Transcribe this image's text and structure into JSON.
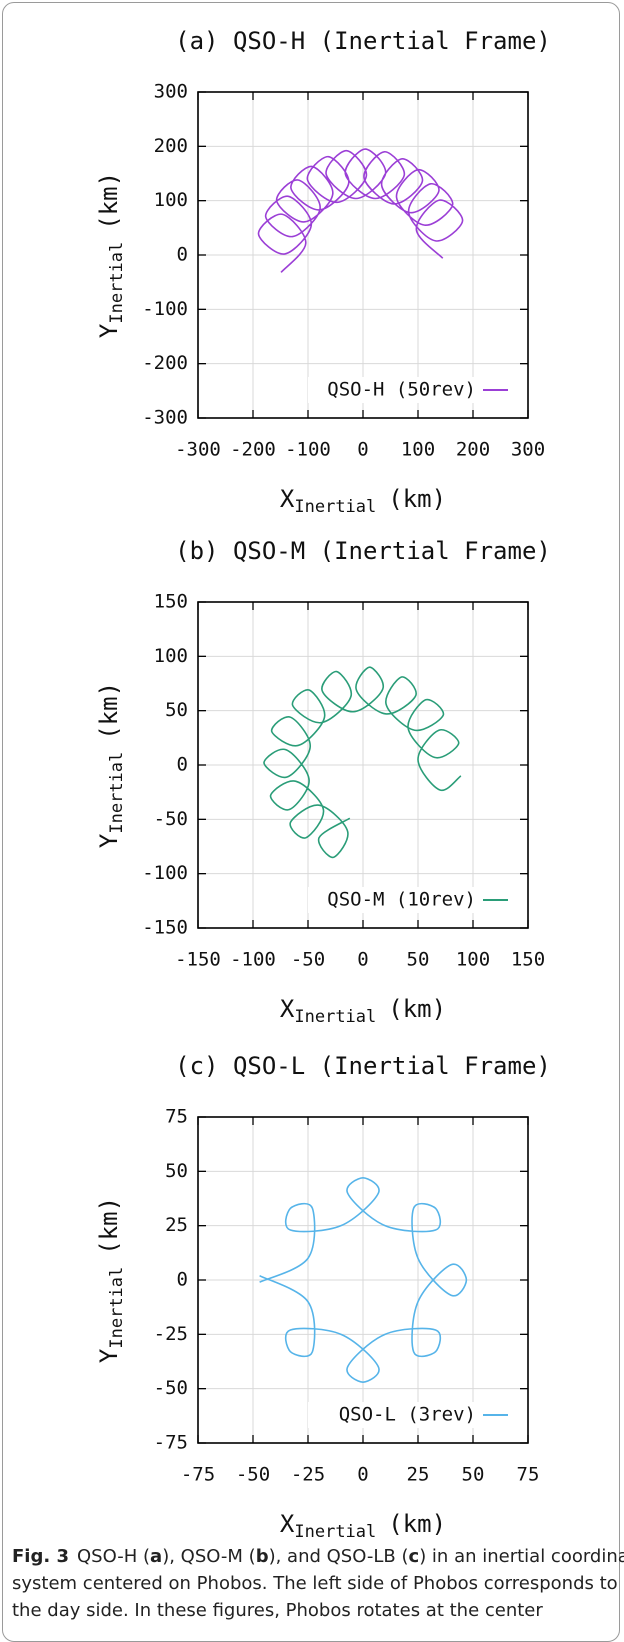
{
  "chart_data": [
    {
      "type": "line",
      "title": "(a) QSO-H (Inertial Frame)",
      "xlabel": {
        "main": "X",
        "sub": "Inertial",
        "unit": "(km)"
      },
      "ylabel": {
        "main": "Y",
        "sub": "Inertial",
        "unit": "(km)"
      },
      "x": [
        -149,
        -104,
        -147,
        -190,
        -142,
        -94,
        -136,
        -177,
        -128,
        -78,
        -118,
        -157,
        -106,
        -55,
        -93,
        -131,
        -79,
        -26,
        -63,
        -101,
        -47,
        6,
        -30,
        -67,
        -13,
        41,
        4,
        -32,
        22,
        75,
        39,
        2,
        56,
        108,
        71,
        34,
        86,
        138,
        100,
        61,
        112,
        163,
        123,
        83,
        132,
        181,
        139,
        97,
        145
      ],
      "series": [
        {
          "name": "QSO-H (50rev)",
          "color": "#9b3fd6",
          "values": [
            -32,
            22,
            75,
            39,
            2,
            56,
            108,
            71,
            34,
            86,
            138,
            100,
            61,
            112,
            163,
            123,
            83,
            132,
            181,
            139,
            97,
            145,
            192,
            149,
            104,
            150,
            195,
            149,
            104,
            147,
            190,
            142,
            94,
            136,
            177,
            128,
            78,
            118,
            157,
            106,
            55,
            93,
            131,
            79,
            26,
            63,
            101,
            47,
            -6
          ]
        }
      ],
      "xlim": [
        -300,
        300
      ],
      "xticks": [
        -300,
        -200,
        -100,
        0,
        100,
        200,
        300
      ],
      "ylim": [
        -300,
        300
      ],
      "yticks": [
        -300,
        -200,
        -100,
        0,
        100,
        200,
        300
      ],
      "grid": true,
      "legend": "lower right"
    },
    {
      "type": "line",
      "title": "(b) QSO-M (Inertial Frame)",
      "xlabel": {
        "main": "X",
        "sub": "Inertial",
        "unit": "(km)"
      },
      "ylabel": {
        "main": "Y",
        "sub": "Inertial",
        "unit": "(km)"
      },
      "x": [
        -12,
        -40,
        -27,
        -14,
        -40,
        -66,
        -52,
        -36,
        -61,
        -84,
        -67,
        -49,
        -70,
        -90,
        -69,
        -48,
        -66,
        -83,
        -59,
        -35,
        -49,
        -64,
        -38,
        -11,
        -24,
        -37,
        -9,
        18,
        6,
        -6,
        21,
        48,
        35,
        21,
        47,
        73,
        57,
        41,
        65,
        87,
        69,
        50,
        70,
        89
      ],
      "series": [
        {
          "name": "QSO-M (10rev)",
          "color": "#2a9d78",
          "values": [
            -49,
            -67,
            -85,
            -61,
            -37,
            -53,
            -67,
            -41,
            -15,
            -28,
            -41,
            -14,
            14,
            2,
            -11,
            17,
            44,
            31,
            18,
            44,
            69,
            55,
            39,
            63,
            86,
            68,
            49,
            70,
            90,
            69,
            47,
            64,
            81,
            56,
            32,
            46,
            60,
            34,
            7,
            20,
            32,
            5,
            -23,
            -10
          ]
        }
      ],
      "xlim": [
        -150,
        150
      ],
      "xticks": [
        -150,
        -100,
        -50,
        0,
        50,
        100,
        150
      ],
      "ylim": [
        -150,
        150
      ],
      "yticks": [
        -150,
        -100,
        -50,
        0,
        50,
        100,
        150
      ],
      "grid": true,
      "legend": "lower right"
    },
    {
      "type": "line",
      "title": "(c) QSO-L (Inertial Frame)",
      "xlabel": {
        "main": "X",
        "sub": "Inertial",
        "unit": "(km)"
      },
      "ylabel": {
        "main": "Y",
        "sub": "Inertial",
        "unit": "(km)"
      },
      "x": [
        -47,
        -25,
        -23,
        -33,
        -33,
        -10,
        7,
        0,
        -7,
        10,
        33,
        33,
        23,
        25,
        40,
        47,
        40,
        25,
        23,
        33,
        33,
        10,
        -7,
        0,
        7,
        -10,
        -33,
        -33,
        -23,
        -25,
        -47
      ],
      "series": [
        {
          "name": "QSO-L (3rev)",
          "color": "#56b4e9",
          "values": [
            2,
            -10,
            -33,
            -33,
            -23,
            -25,
            -40,
            -47,
            -40,
            -25,
            -23,
            -33,
            -33,
            -10,
            7,
            0,
            -7,
            10,
            33,
            33,
            23,
            25,
            40,
            47,
            40,
            25,
            23,
            33,
            33,
            10,
            -1
          ]
        }
      ],
      "xlim": [
        -75,
        75
      ],
      "xticks": [
        -75,
        -50,
        -25,
        0,
        25,
        50,
        75
      ],
      "ylim": [
        -75,
        75
      ],
      "yticks": [
        -75,
        -50,
        -25,
        0,
        25,
        50,
        75
      ],
      "grid": true,
      "legend": "lower right"
    }
  ],
  "caption": {
    "lines": [
      [
        {
          "text": "Fig. 3",
          "bold": true
        },
        {
          "text": "QSO-H ("
        },
        {
          "text": "a",
          "bold": true
        },
        {
          "text": "), QSO-M ("
        },
        {
          "text": "b",
          "bold": true
        },
        {
          "text": "), and QSO-LB ("
        },
        {
          "text": "c",
          "bold": true
        },
        {
          "text": ") in an inertial coordinate"
        }
      ],
      [
        {
          "text": "system centered on Phobos. The left side of Phobos corresponds to"
        }
      ],
      [
        {
          "text": "the day side. In these figures, Phobos rotates at the center"
        }
      ]
    ]
  }
}
